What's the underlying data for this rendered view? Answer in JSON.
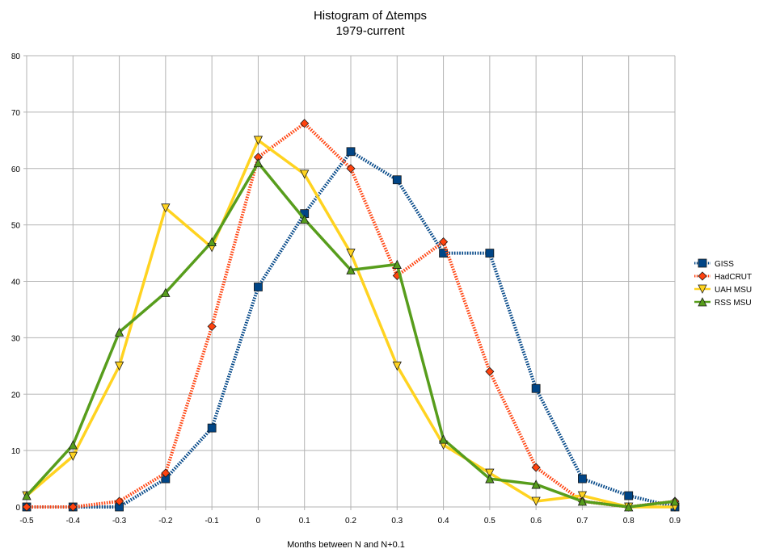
{
  "chart_data": {
    "type": "line",
    "title": "Histogram of Δtemps",
    "subtitle": "1979-current",
    "xlabel": "Months between N and N+0.1",
    "ylabel": "",
    "x": [
      -0.5,
      -0.4,
      -0.3,
      -0.2,
      -0.1,
      0,
      0.1,
      0.2,
      0.3,
      0.4,
      0.5,
      0.6,
      0.7,
      0.8,
      0.9
    ],
    "x_tick_labels": [
      "-0.5",
      "-0.4",
      "-0.3",
      "-0.2",
      "-0.1",
      "0",
      "0.1",
      "0.2",
      "0.3",
      "0.4",
      "0.5",
      "0.6",
      "0.7",
      "0.8",
      "0.9"
    ],
    "y_tick_labels": [
      "0",
      "10",
      "20",
      "30",
      "40",
      "50",
      "60",
      "70",
      "80"
    ],
    "xlim": [
      -0.5,
      0.9
    ],
    "ylim": [
      0,
      80
    ],
    "grid": true,
    "legend_position": "right",
    "series": [
      {
        "name": "GISS",
        "color": "#004586",
        "line": "dotted",
        "marker": "square",
        "values": [
          0,
          0,
          0,
          5,
          14,
          39,
          52,
          63,
          58,
          45,
          45,
          21,
          5,
          2,
          0
        ]
      },
      {
        "name": "HadCRUT",
        "color": "#ff420e",
        "line": "dotted",
        "marker": "diamond",
        "values": [
          0,
          0,
          1,
          6,
          32,
          62,
          68,
          60,
          41,
          47,
          24,
          7,
          1,
          0,
          1
        ]
      },
      {
        "name": "UAH MSU",
        "color": "#ffd320",
        "line": "solid",
        "marker": "triangle-down",
        "values": [
          2,
          9,
          25,
          53,
          46,
          65,
          59,
          45,
          25,
          11,
          6,
          1,
          2,
          0,
          0
        ]
      },
      {
        "name": "RSS MSU",
        "color": "#579d1c",
        "line": "solid",
        "marker": "triangle-up",
        "values": [
          2,
          11,
          31,
          38,
          47,
          61,
          51,
          42,
          43,
          12,
          5,
          4,
          1,
          0,
          1
        ]
      }
    ]
  }
}
